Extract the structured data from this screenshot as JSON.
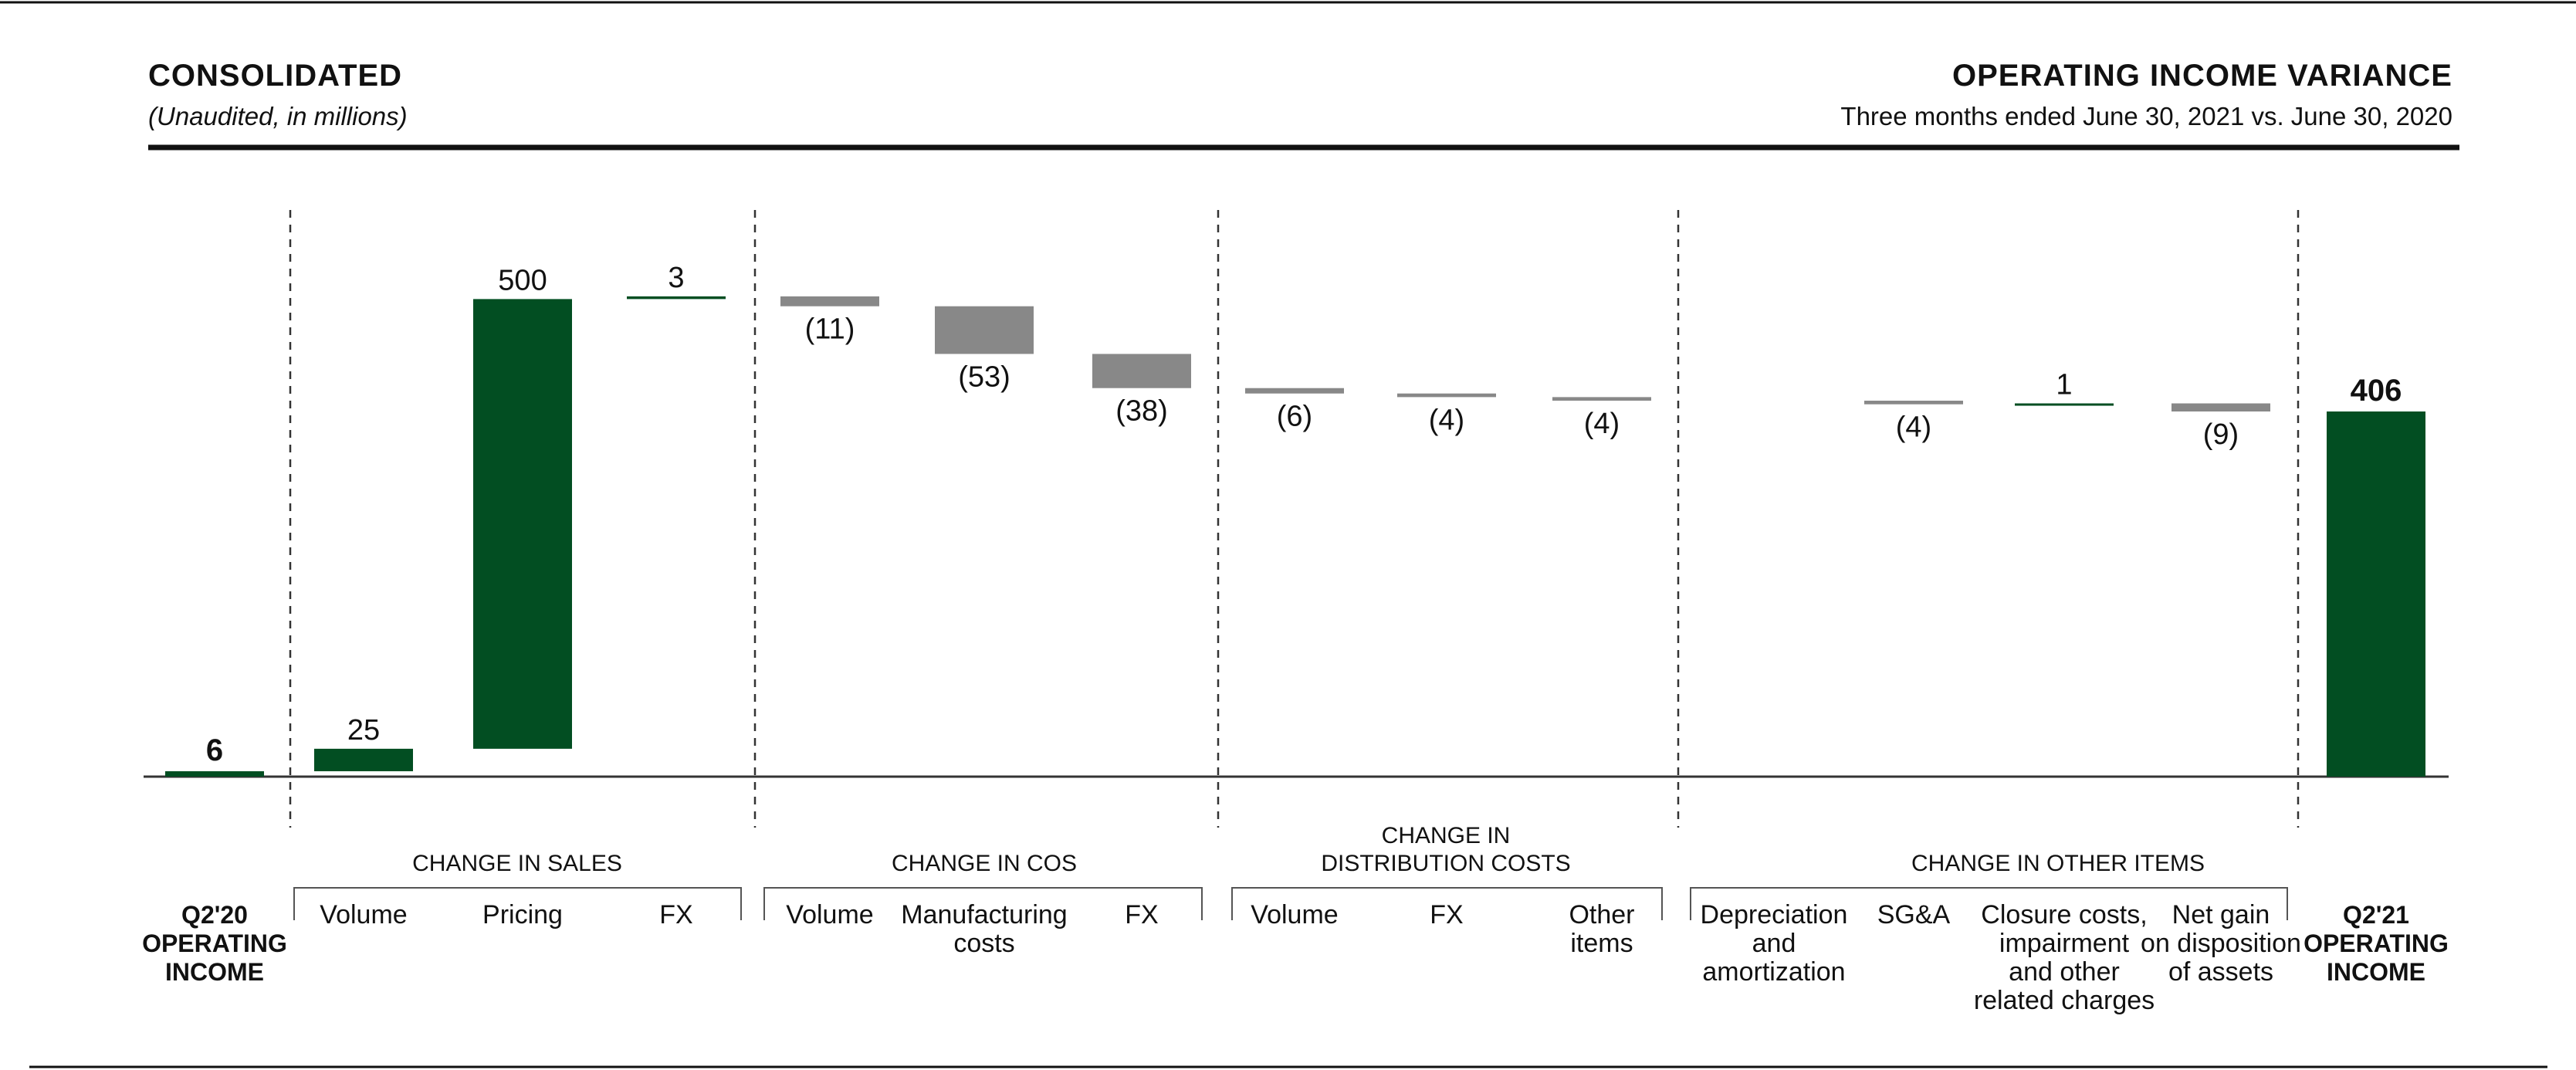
{
  "header": {
    "left_title": "CONSOLIDATED",
    "left_subtitle": "(Unaudited, in millions)",
    "right_title": "OPERATING INCOME VARIANCE",
    "right_subtitle": "Three months ended June 30, 2021 vs. June 30, 2020"
  },
  "colors": {
    "positive": "#024e22",
    "negative": "#888888",
    "text": "#111111"
  },
  "chart_data": {
    "type": "bar",
    "subtype": "waterfall",
    "start": {
      "value": 6,
      "label": "6",
      "category": [
        "Q2'20",
        "OPERATING",
        "INCOME"
      ]
    },
    "end": {
      "value": 406,
      "label": "406",
      "category": [
        "Q2'21",
        "OPERATING",
        "INCOME"
      ]
    },
    "groups": [
      {
        "name": [
          "CHANGE IN SALES"
        ],
        "items": [
          {
            "category": [
              "Volume"
            ],
            "value": 25,
            "label": "25"
          },
          {
            "category": [
              "Pricing"
            ],
            "value": 500,
            "label": "500"
          },
          {
            "category": [
              "FX"
            ],
            "value": 3,
            "label": "3"
          }
        ]
      },
      {
        "name": [
          "CHANGE IN COS"
        ],
        "items": [
          {
            "category": [
              "Volume"
            ],
            "value": -11,
            "label": "(11)"
          },
          {
            "category": [
              "Manufacturing",
              "costs"
            ],
            "value": -53,
            "label": "(53)"
          },
          {
            "category": [
              "FX"
            ],
            "value": -38,
            "label": "(38)"
          }
        ]
      },
      {
        "name": [
          "CHANGE IN",
          "DISTRIBUTION COSTS"
        ],
        "items": [
          {
            "category": [
              "Volume"
            ],
            "value": -6,
            "label": "(6)"
          },
          {
            "category": [
              "FX"
            ],
            "value": -4,
            "label": "(4)"
          },
          {
            "category": [
              "Other",
              "items"
            ],
            "value": -4,
            "label": "(4)"
          }
        ]
      },
      {
        "name": [
          "CHANGE IN OTHER ITEMS"
        ],
        "items": [
          {
            "category": [
              "Depreciation",
              "and",
              "amortization"
            ],
            "value": 0,
            "label": ""
          },
          {
            "category": [
              "SG&A"
            ],
            "value": -4,
            "label": "(4)"
          },
          {
            "category": [
              "Closure costs,",
              "impairment",
              "and other",
              "related charges"
            ],
            "value": 1,
            "label": "1"
          },
          {
            "category": [
              "Net gain",
              "on disposition",
              "of assets"
            ],
            "value": -9,
            "label": "(9)"
          }
        ]
      }
    ],
    "ylim": [
      0,
      625
    ],
    "grid": false,
    "legend": "none"
  }
}
